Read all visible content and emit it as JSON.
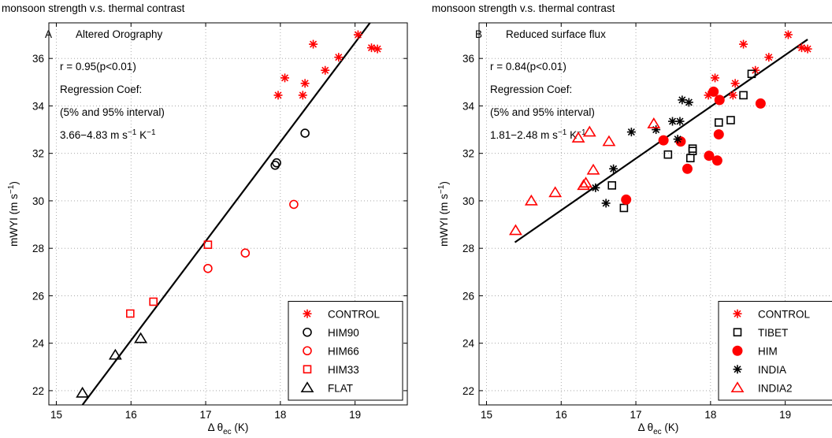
{
  "chart_data": [
    {
      "type": "scatter",
      "title": "monsoon strength v.s. thermal contrast",
      "panel_letter": "A",
      "subtitle": "Altered Orography",
      "xlabel": "Δ θec (K)",
      "ylabel": "mWYI (m s−1)",
      "xlim": [
        14.9,
        19.7
      ],
      "ylim": [
        21.4,
        37.5
      ],
      "xticks": [
        15,
        16,
        17,
        18,
        19
      ],
      "yticks": [
        22,
        24,
        26,
        28,
        30,
        32,
        34,
        36
      ],
      "grid": true,
      "legend_position": "bottom-right",
      "stats": {
        "r_text": "r = 0.95(p<0.01)",
        "coef_label": "Regression Coef:",
        "interval_label": "(5% and 95% interval)",
        "range_text": "3.66−4.83 m s",
        "range_exp1": "−1",
        "range_mid": " K",
        "range_exp2": "−1"
      },
      "regression_line": {
        "x": [
          15.35,
          19.2
        ],
        "y": [
          21.4,
          37.5
        ]
      },
      "series": [
        {
          "name": "CONTROL",
          "marker": "star",
          "color": "#ff0000",
          "points": [
            [
              17.97,
              34.45
            ],
            [
              18.06,
              35.18
            ],
            [
              18.3,
              34.45
            ],
            [
              18.33,
              34.95
            ],
            [
              18.44,
              36.6
            ],
            [
              18.6,
              35.5
            ],
            [
              18.78,
              36.05
            ],
            [
              19.04,
              37.0
            ],
            [
              19.22,
              36.45
            ],
            [
              19.3,
              36.4
            ]
          ]
        },
        {
          "name": "HIM90",
          "marker": "circle",
          "color": "#000000",
          "points": [
            [
              17.93,
              31.5
            ],
            [
              17.95,
              31.6
            ],
            [
              18.33,
              32.85
            ]
          ]
        },
        {
          "name": "HIM66",
          "marker": "circle",
          "color": "#ff0000",
          "points": [
            [
              17.03,
              27.15
            ],
            [
              17.53,
              27.8
            ],
            [
              18.18,
              29.85
            ]
          ]
        },
        {
          "name": "HIM33",
          "marker": "square",
          "color": "#ff0000",
          "points": [
            [
              15.99,
              25.25
            ],
            [
              16.3,
              25.75
            ],
            [
              17.03,
              28.15
            ]
          ]
        },
        {
          "name": "FLAT",
          "marker": "triangle",
          "color": "#000000",
          "points": [
            [
              15.35,
              21.9
            ],
            [
              15.79,
              23.5
            ],
            [
              16.13,
              24.2
            ]
          ]
        }
      ]
    },
    {
      "type": "scatter",
      "title": "monsoon strength v.s. thermal contrast",
      "panel_letter": "B",
      "subtitle": "Reduced surface flux",
      "xlabel": "Δ θec (K)",
      "ylabel": "mWYI (m s−1)",
      "xlim": [
        14.9,
        19.7
      ],
      "ylim": [
        21.4,
        37.5
      ],
      "xticks": [
        15,
        16,
        17,
        18,
        19
      ],
      "yticks": [
        22,
        24,
        26,
        28,
        30,
        32,
        34,
        36
      ],
      "grid": true,
      "legend_position": "bottom-right",
      "stats": {
        "r_text": "r = 0.84(p<0.01)",
        "coef_label": "Regression Coef:",
        "interval_label": "(5% and 95% interval)",
        "range_text": "1.81−2.48 m s",
        "range_exp1": "−1",
        "range_mid": " K",
        "range_exp2": "−1"
      },
      "regression_line": {
        "x": [
          15.38,
          19.3
        ],
        "y": [
          28.25,
          36.8
        ]
      },
      "series": [
        {
          "name": "CONTROL",
          "marker": "star",
          "color": "#ff0000",
          "points": [
            [
              17.97,
              34.45
            ],
            [
              18.06,
              35.18
            ],
            [
              18.3,
              34.45
            ],
            [
              18.33,
              34.95
            ],
            [
              18.44,
              36.6
            ],
            [
              18.6,
              35.5
            ],
            [
              18.78,
              36.05
            ],
            [
              19.04,
              37.0
            ],
            [
              19.22,
              36.45
            ],
            [
              19.3,
              36.4
            ]
          ]
        },
        {
          "name": "TIBET",
          "marker": "square",
          "color": "#000000",
          "points": [
            [
              16.84,
              29.7
            ],
            [
              16.68,
              30.65
            ],
            [
              17.43,
              31.95
            ],
            [
              17.73,
              31.8
            ],
            [
              17.76,
              32.1
            ],
            [
              17.76,
              32.2
            ],
            [
              18.11,
              33.3
            ],
            [
              18.27,
              33.4
            ],
            [
              18.44,
              34.45
            ],
            [
              18.55,
              35.35
            ]
          ]
        },
        {
          "name": "HIM",
          "marker": "filled-circle",
          "color": "#ff0000",
          "points": [
            [
              16.87,
              30.05
            ],
            [
              17.37,
              32.55
            ],
            [
              17.6,
              32.5
            ],
            [
              17.69,
              31.35
            ],
            [
              17.98,
              31.9
            ],
            [
              18.04,
              34.6
            ],
            [
              18.09,
              31.7
            ],
            [
              18.11,
              32.8
            ],
            [
              18.12,
              34.25
            ],
            [
              18.67,
              34.1
            ]
          ]
        },
        {
          "name": "INDIA",
          "marker": "star",
          "color": "#000000",
          "points": [
            [
              16.46,
              30.55
            ],
            [
              16.6,
              29.9
            ],
            [
              16.7,
              31.35
            ],
            [
              16.94,
              32.9
            ],
            [
              17.27,
              33.0
            ],
            [
              17.49,
              33.35
            ],
            [
              17.56,
              32.6
            ],
            [
              17.59,
              33.35
            ],
            [
              17.62,
              34.25
            ],
            [
              17.71,
              34.15
            ]
          ]
        },
        {
          "name": "INDIA2",
          "marker": "triangle",
          "color": "#ff0000",
          "points": [
            [
              15.39,
              28.75
            ],
            [
              15.6,
              30.0
            ],
            [
              15.92,
              30.35
            ],
            [
              16.23,
              32.65
            ],
            [
              16.3,
              30.65
            ],
            [
              16.33,
              30.75
            ],
            [
              16.38,
              32.9
            ],
            [
              16.43,
              31.3
            ],
            [
              16.64,
              32.5
            ],
            [
              17.24,
              33.25
            ]
          ]
        }
      ]
    }
  ]
}
